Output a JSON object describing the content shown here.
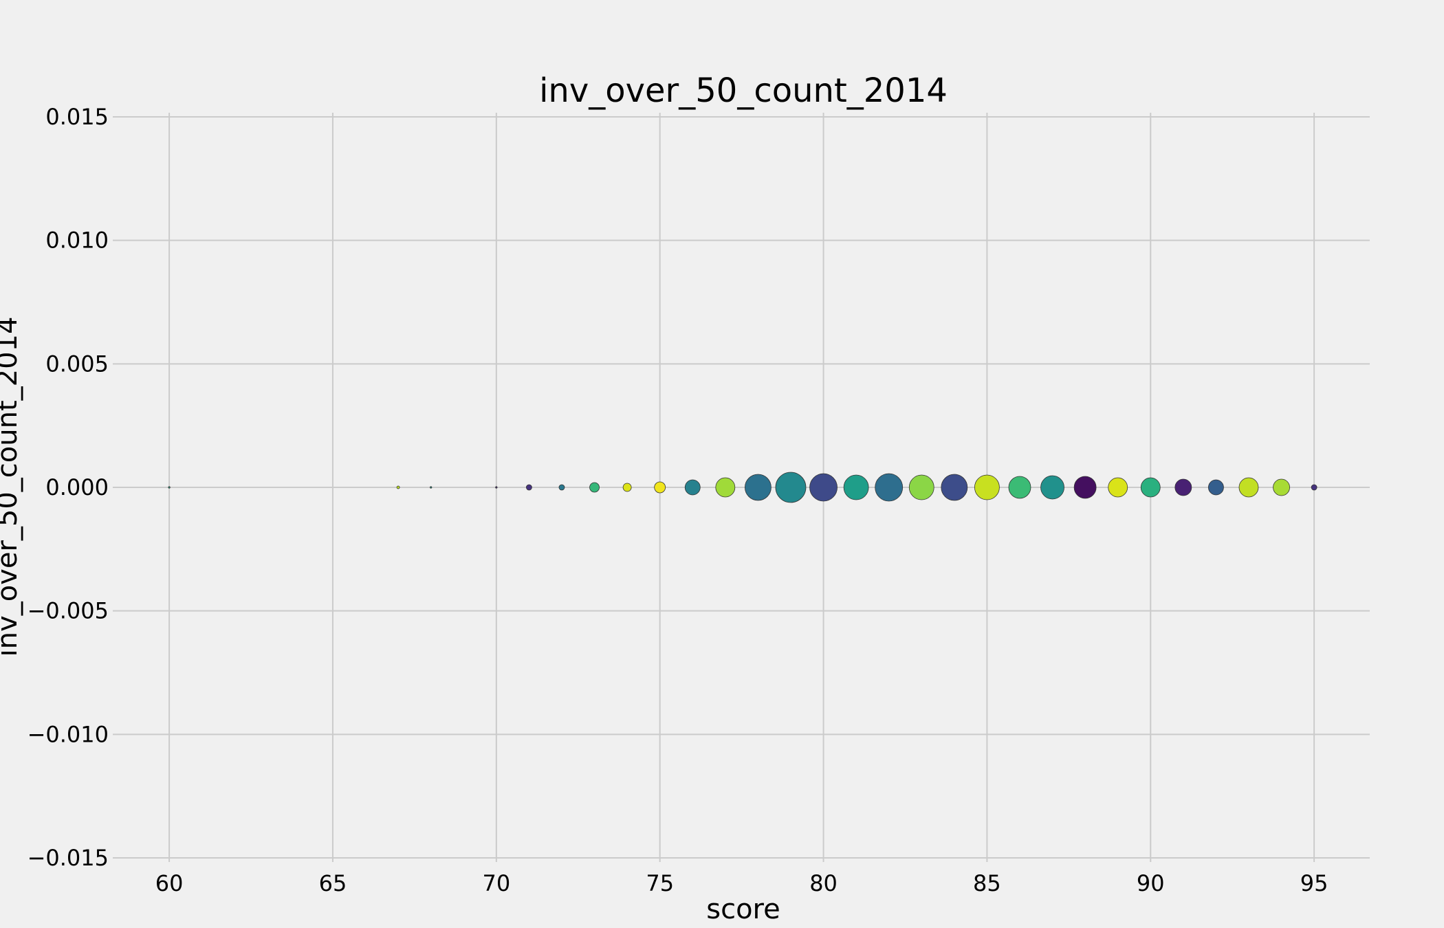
{
  "chart_data": {
    "type": "scatter",
    "title": "inv_over_50_count_2014",
    "xlabel": "score",
    "ylabel": "inv_over_50_count_2014",
    "xlim": [
      58.4,
      96.7
    ],
    "ylim": [
      -0.015,
      0.015
    ],
    "xticks": [
      60,
      65,
      70,
      75,
      80,
      85,
      90,
      95
    ],
    "xtick_labels": [
      "60",
      "65",
      "70",
      "75",
      "80",
      "85",
      "90",
      "95"
    ],
    "yticks": [
      0.015,
      0.01,
      0.005,
      0.0,
      -0.005,
      -0.01,
      -0.015
    ],
    "ytick_labels": [
      "0.015",
      "0.010",
      "0.005",
      "0.000",
      "−0.005",
      "−0.010",
      "−0.015"
    ],
    "grid": true,
    "background": "#f0f0f0",
    "points": [
      {
        "x": 60,
        "y": 0,
        "size": 1,
        "color": "#22a884"
      },
      {
        "x": 67,
        "y": 0,
        "size": 2,
        "color": "#bddf26"
      },
      {
        "x": 68,
        "y": 0,
        "size": 1,
        "color": "#2a9d8f"
      },
      {
        "x": 70,
        "y": 0,
        "size": 1,
        "color": "#482878"
      },
      {
        "x": 71,
        "y": 0,
        "size": 4,
        "color": "#46327e"
      },
      {
        "x": 72,
        "y": 0,
        "size": 4,
        "color": "#2a788e"
      },
      {
        "x": 73,
        "y": 0,
        "size": 7,
        "color": "#35b779"
      },
      {
        "x": 74,
        "y": 0,
        "size": 6,
        "color": "#dde318"
      },
      {
        "x": 75,
        "y": 0,
        "size": 8,
        "color": "#f1e51d"
      },
      {
        "x": 76,
        "y": 0,
        "size": 11,
        "color": "#26818e"
      },
      {
        "x": 77,
        "y": 0,
        "size": 14,
        "color": "#a0da39"
      },
      {
        "x": 78,
        "y": 0,
        "size": 19,
        "color": "#2c718e"
      },
      {
        "x": 79,
        "y": 0,
        "size": 22,
        "color": "#23898e"
      },
      {
        "x": 80,
        "y": 0,
        "size": 20,
        "color": "#3e4a89"
      },
      {
        "x": 81,
        "y": 0,
        "size": 18,
        "color": "#1f9e89"
      },
      {
        "x": 82,
        "y": 0,
        "size": 20,
        "color": "#2e6e8e"
      },
      {
        "x": 83,
        "y": 0,
        "size": 18,
        "color": "#8bd646"
      },
      {
        "x": 84,
        "y": 0,
        "size": 19,
        "color": "#3d4d8a"
      },
      {
        "x": 85,
        "y": 0,
        "size": 18,
        "color": "#c8e020"
      },
      {
        "x": 86,
        "y": 0,
        "size": 16,
        "color": "#3bbb75"
      },
      {
        "x": 87,
        "y": 0,
        "size": 17,
        "color": "#21918c"
      },
      {
        "x": 88,
        "y": 0,
        "size": 16,
        "color": "#440f5f"
      },
      {
        "x": 89,
        "y": 0,
        "size": 14,
        "color": "#dae319"
      },
      {
        "x": 90,
        "y": 0,
        "size": 14,
        "color": "#2ab07f"
      },
      {
        "x": 91,
        "y": 0,
        "size": 12,
        "color": "#482173"
      },
      {
        "x": 92,
        "y": 0,
        "size": 11,
        "color": "#345e8d"
      },
      {
        "x": 93,
        "y": 0,
        "size": 14,
        "color": "#c2df23"
      },
      {
        "x": 94,
        "y": 0,
        "size": 12,
        "color": "#a8db34"
      },
      {
        "x": 95,
        "y": 0,
        "size": 4,
        "color": "#46337e"
      }
    ]
  }
}
